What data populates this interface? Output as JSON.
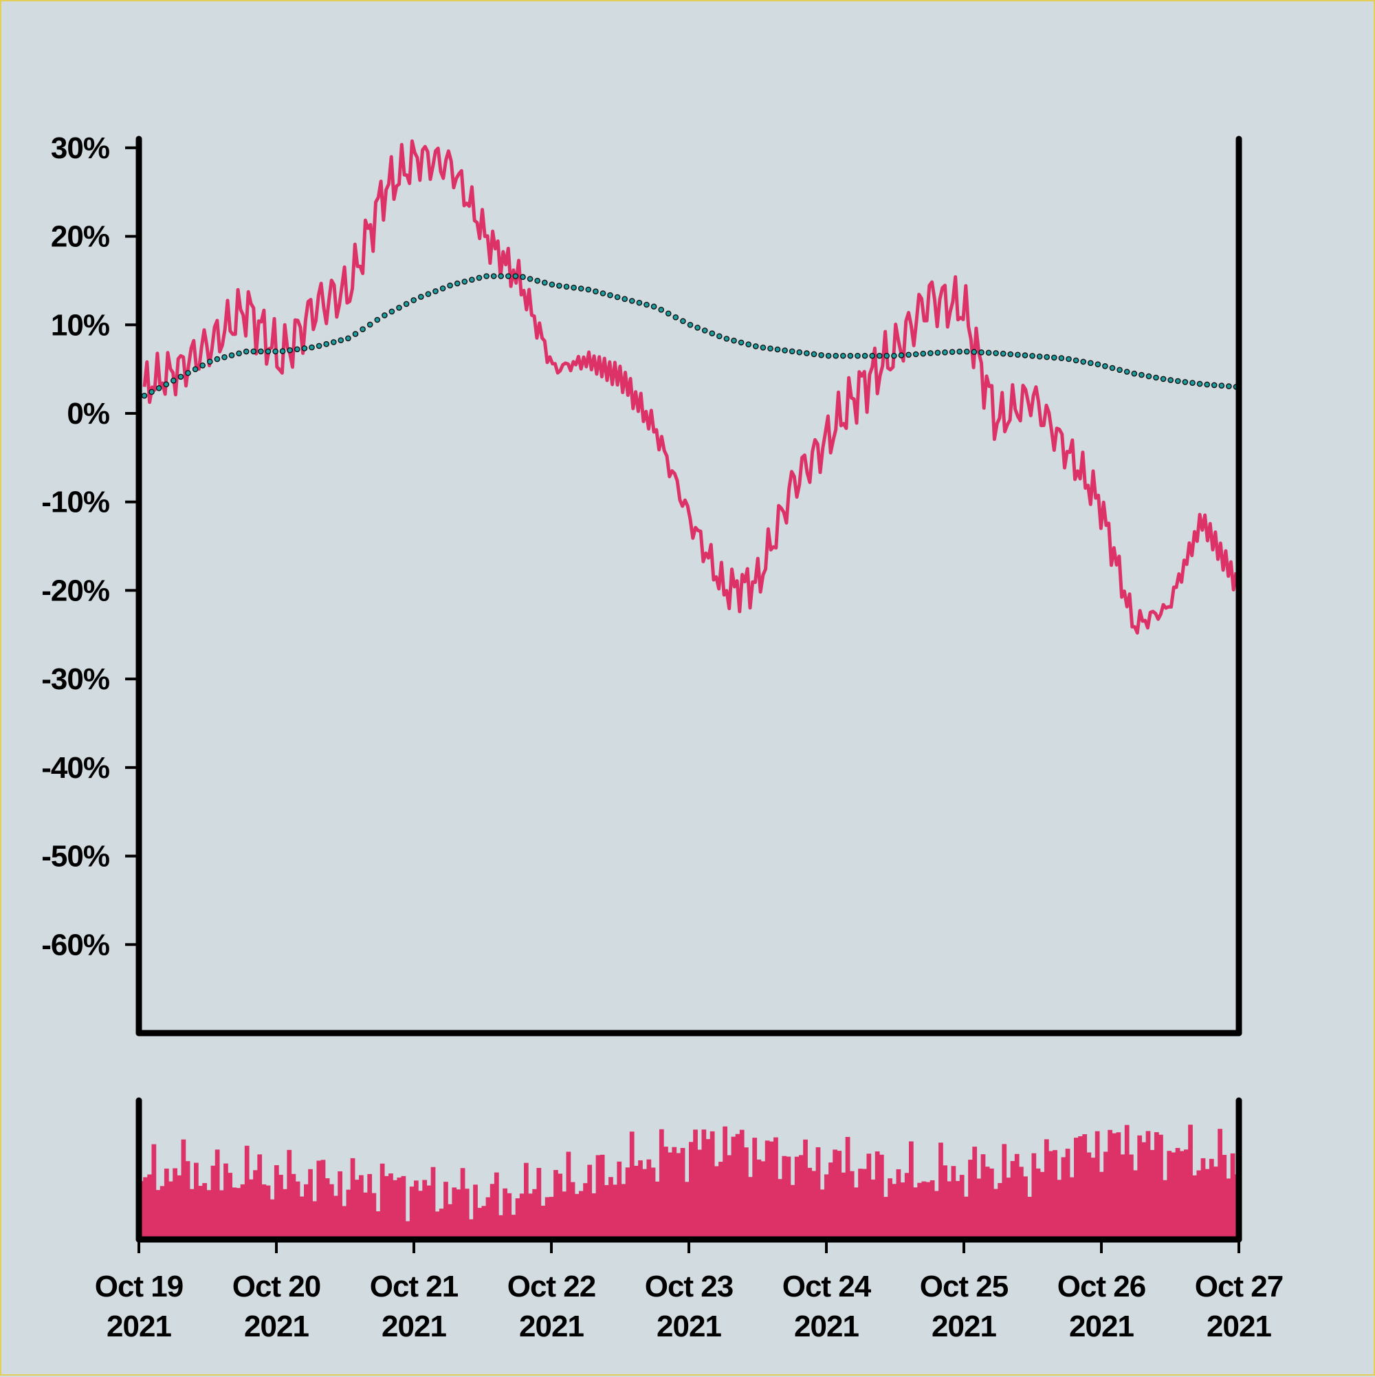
{
  "chart_data": [
    {
      "type": "line",
      "title": "",
      "xlabel": "",
      "ylabel": "",
      "x_range": [
        "2021-10-19",
        "2021-10-27"
      ],
      "ylim": [
        -0.7,
        0.31
      ],
      "yticks": [
        0.3,
        0.2,
        0.1,
        0.0,
        -0.1,
        -0.2,
        -0.3,
        -0.4,
        -0.5,
        -0.6
      ],
      "ytick_labels": [
        "30%",
        "20%",
        "10%",
        "0%",
        "-10%",
        "-20%",
        "-30%",
        "-40%",
        "-50%",
        "-60%"
      ],
      "grid": false,
      "legend": "none",
      "series": [
        {
          "style": "solid line",
          "color": "#dc3268",
          "points": [
            [
              "2021-10-19",
              0.03
            ],
            [
              "2021-10-19 06:00",
              0.05
            ],
            [
              "2021-10-19 12:00",
              0.08
            ],
            [
              "2021-10-19 18:00",
              0.12
            ],
            [
              "2021-10-20",
              0.06
            ],
            [
              "2021-10-20 06:00",
              0.12
            ],
            [
              "2021-10-20 12:00",
              0.14
            ],
            [
              "2021-10-20 18:00",
              0.25
            ],
            [
              "2021-10-21",
              0.29
            ],
            [
              "2021-10-21 06:00",
              0.28
            ],
            [
              "2021-10-21 12:00",
              0.2
            ],
            [
              "2021-10-21 18:00",
              0.15
            ],
            [
              "2021-10-22",
              0.05
            ],
            [
              "2021-10-22 06:00",
              0.06
            ],
            [
              "2021-10-22 12:00",
              0.04
            ],
            [
              "2021-10-22 18:00",
              -0.02
            ],
            [
              "2021-10-23",
              -0.12
            ],
            [
              "2021-10-23 06:00",
              -0.2
            ],
            [
              "2021-10-23 12:00",
              -0.19
            ],
            [
              "2021-10-23 18:00",
              -0.08
            ],
            [
              "2021-10-24",
              -0.03
            ],
            [
              "2021-10-24 06:00",
              0.03
            ],
            [
              "2021-10-24 12:00",
              0.07
            ],
            [
              "2021-10-24 18:00",
              0.13
            ],
            [
              "2021-10-25",
              0.12
            ],
            [
              "2021-10-25 06:00",
              -0.01
            ],
            [
              "2021-10-25 12:00",
              0.02
            ],
            [
              "2021-10-25 18:00",
              -0.04
            ],
            [
              "2021-10-26",
              -0.1
            ],
            [
              "2021-10-26 06:00",
              -0.24
            ],
            [
              "2021-10-26 12:00",
              -0.22
            ],
            [
              "2021-10-26 18:00",
              -0.12
            ],
            [
              "2021-10-27",
              -0.19
            ]
          ]
        },
        {
          "style": "dotted line",
          "color": "#1a9ea0",
          "points": [
            [
              "2021-10-19",
              0.02
            ],
            [
              "2021-10-19 06:00",
              0.04
            ],
            [
              "2021-10-19 12:00",
              0.06
            ],
            [
              "2021-10-19 18:00",
              0.07
            ],
            [
              "2021-10-20",
              0.07
            ],
            [
              "2021-10-20 06:00",
              0.075
            ],
            [
              "2021-10-20 12:00",
              0.085
            ],
            [
              "2021-10-20 18:00",
              0.11
            ],
            [
              "2021-10-21",
              0.13
            ],
            [
              "2021-10-21 06:00",
              0.145
            ],
            [
              "2021-10-21 12:00",
              0.155
            ],
            [
              "2021-10-21 18:00",
              0.155
            ],
            [
              "2021-10-22",
              0.145
            ],
            [
              "2021-10-22 06:00",
              0.14
            ],
            [
              "2021-10-22 12:00",
              0.13
            ],
            [
              "2021-10-22 18:00",
              0.12
            ],
            [
              "2021-10-23",
              0.1
            ],
            [
              "2021-10-23 06:00",
              0.085
            ],
            [
              "2021-10-23 12:00",
              0.075
            ],
            [
              "2021-10-23 18:00",
              0.07
            ],
            [
              "2021-10-24",
              0.065
            ],
            [
              "2021-10-24 06:00",
              0.065
            ],
            [
              "2021-10-24 12:00",
              0.065
            ],
            [
              "2021-10-24 18:00",
              0.068
            ],
            [
              "2021-10-25",
              0.07
            ],
            [
              "2021-10-25 06:00",
              0.068
            ],
            [
              "2021-10-25 12:00",
              0.065
            ],
            [
              "2021-10-25 18:00",
              0.062
            ],
            [
              "2021-10-26",
              0.055
            ],
            [
              "2021-10-26 06:00",
              0.045
            ],
            [
              "2021-10-26 12:00",
              0.038
            ],
            [
              "2021-10-26 18:00",
              0.033
            ],
            [
              "2021-10-27",
              0.03
            ]
          ]
        }
      ]
    },
    {
      "type": "bar",
      "title": "",
      "xlabel": "",
      "ylabel": "",
      "x_range": [
        "2021-10-19",
        "2021-10-27"
      ],
      "xticks": [
        "2021-10-19",
        "2021-10-20",
        "2021-10-21",
        "2021-10-22",
        "2021-10-23",
        "2021-10-24",
        "2021-10-25",
        "2021-10-26",
        "2021-10-27"
      ],
      "xtick_labels": [
        [
          "Oct 19",
          "2021"
        ],
        [
          "Oct 20",
          "2021"
        ],
        [
          "Oct 21",
          "2021"
        ],
        [
          "Oct 22",
          "2021"
        ],
        [
          "Oct 23",
          "2021"
        ],
        [
          "Oct 24",
          "2021"
        ],
        [
          "Oct 25",
          "2021"
        ],
        [
          "Oct 26",
          "2021"
        ],
        [
          "Oct 27",
          "2021"
        ]
      ],
      "y_axis_labels_shown": false,
      "ylim": [
        0,
        1
      ],
      "color": "#dc3268",
      "series": [
        {
          "values": [
            0.42,
            0.52,
            0.45,
            0.48,
            0.44,
            0.44,
            0.4,
            0.42,
            0.36,
            0.34,
            0.3,
            0.36,
            0.42,
            0.46,
            0.55,
            0.62,
            0.7,
            0.68,
            0.6,
            0.54,
            0.56,
            0.48,
            0.45,
            0.48,
            0.52,
            0.5,
            0.6,
            0.68,
            0.7,
            0.66,
            0.58,
            0.56
          ]
        }
      ]
    }
  ]
}
